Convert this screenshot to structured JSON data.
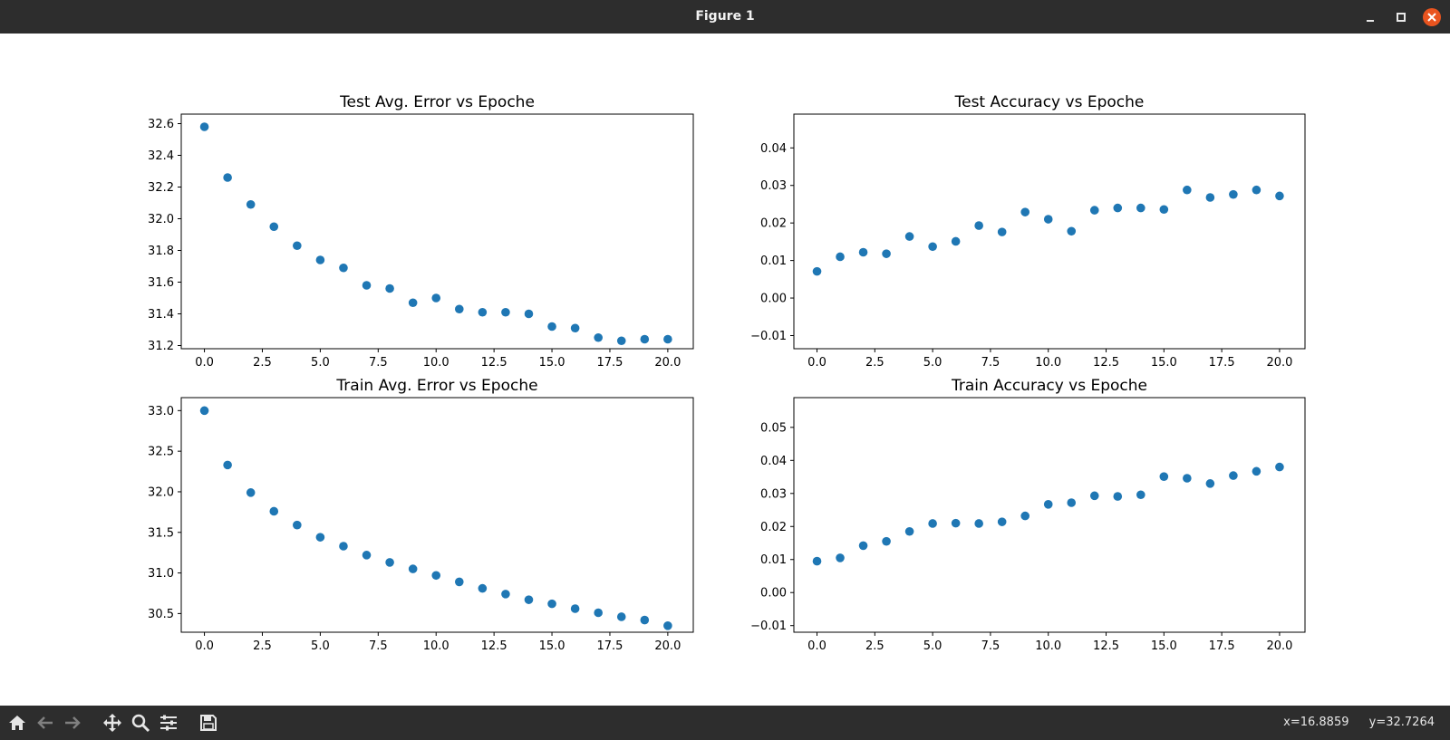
{
  "window": {
    "title": "Figure 1",
    "minimize_icon": "minimize-icon",
    "maximize_icon": "maximize-icon",
    "close_icon": "close-icon",
    "close_color": "#e9541f"
  },
  "toolbar": {
    "icons": [
      "home-icon",
      "back-arrow-icon",
      "forward-arrow-icon",
      "pan-move-icon",
      "zoom-magnifier-icon",
      "configure-subplots-icon",
      "save-floppy-icon"
    ],
    "coord_x": "x=16.8859",
    "coord_y": "y=32.7264"
  },
  "chart_data": [
    {
      "type": "scatter",
      "title": "Test Avg. Error vs Epoche",
      "xlabel": "",
      "ylabel": "",
      "x": [
        0,
        1,
        2,
        3,
        4,
        5,
        6,
        7,
        8,
        9,
        10,
        11,
        12,
        13,
        14,
        15,
        16,
        17,
        18,
        19,
        20
      ],
      "y": [
        32.58,
        32.26,
        32.09,
        31.95,
        31.83,
        31.74,
        31.69,
        31.58,
        31.56,
        31.47,
        31.5,
        31.43,
        31.41,
        31.41,
        31.4,
        31.32,
        31.31,
        31.25,
        31.23,
        31.24,
        31.24
      ],
      "xlim": [
        -1,
        21.1
      ],
      "ylim": [
        31.18,
        32.66
      ],
      "xticks": [
        0,
        2.5,
        5,
        7.5,
        10,
        12.5,
        15,
        17.5,
        20
      ],
      "xtick_labels": [
        "0.0",
        "2.5",
        "5.0",
        "7.5",
        "10.0",
        "12.5",
        "15.0",
        "17.5",
        "20.0"
      ],
      "yticks": [
        31.2,
        31.4,
        31.6,
        31.8,
        32.0,
        32.2,
        32.4,
        32.6
      ],
      "ytick_labels": [
        "31.2",
        "31.4",
        "31.6",
        "31.8",
        "32.0",
        "32.2",
        "32.4",
        "32.6"
      ],
      "color": "#1f77b4",
      "grid": false
    },
    {
      "type": "scatter",
      "title": "Test Accuracy vs Epoche",
      "xlabel": "",
      "ylabel": "",
      "x": [
        0,
        1,
        2,
        3,
        4,
        5,
        6,
        7,
        8,
        9,
        10,
        11,
        12,
        13,
        14,
        15,
        16,
        17,
        18,
        19,
        20
      ],
      "y": [
        0.0071,
        0.011,
        0.0122,
        0.0118,
        0.0164,
        0.0137,
        0.0151,
        0.0193,
        0.0176,
        0.0229,
        0.021,
        0.0178,
        0.0234,
        0.024,
        0.024,
        0.0236,
        0.0288,
        0.0268,
        0.0276,
        0.0288,
        0.0272
      ],
      "xlim": [
        -1,
        21.1
      ],
      "ylim": [
        -0.0135,
        0.049
      ],
      "xticks": [
        0,
        2.5,
        5,
        7.5,
        10,
        12.5,
        15,
        17.5,
        20
      ],
      "xtick_labels": [
        "0.0",
        "2.5",
        "5.0",
        "7.5",
        "10.0",
        "12.5",
        "15.0",
        "17.5",
        "20.0"
      ],
      "yticks": [
        -0.01,
        0.0,
        0.01,
        0.02,
        0.03,
        0.04
      ],
      "ytick_labels": [
        "−0.01",
        "0.00",
        "0.01",
        "0.02",
        "0.03",
        "0.04"
      ],
      "color": "#1f77b4",
      "grid": false
    },
    {
      "type": "scatter",
      "title": "Train Avg. Error vs Epoche",
      "xlabel": "",
      "ylabel": "",
      "x": [
        0,
        1,
        2,
        3,
        4,
        5,
        6,
        7,
        8,
        9,
        10,
        11,
        12,
        13,
        14,
        15,
        16,
        17,
        18,
        19,
        20
      ],
      "y": [
        33.0,
        32.33,
        31.99,
        31.76,
        31.59,
        31.44,
        31.33,
        31.22,
        31.13,
        31.05,
        30.97,
        30.89,
        30.81,
        30.74,
        30.67,
        30.62,
        30.56,
        30.51,
        30.46,
        30.42,
        30.35
      ],
      "xlim": [
        -1,
        21.1
      ],
      "ylim": [
        30.27,
        33.16
      ],
      "xticks": [
        0,
        2.5,
        5,
        7.5,
        10,
        12.5,
        15,
        17.5,
        20
      ],
      "xtick_labels": [
        "0.0",
        "2.5",
        "5.0",
        "7.5",
        "10.0",
        "12.5",
        "15.0",
        "17.5",
        "20.0"
      ],
      "yticks": [
        30.5,
        31.0,
        31.5,
        32.0,
        32.5,
        33.0
      ],
      "ytick_labels": [
        "30.5",
        "31.0",
        "31.5",
        "32.0",
        "32.5",
        "33.0"
      ],
      "color": "#1f77b4",
      "grid": false
    },
    {
      "type": "scatter",
      "title": "Train Accuracy vs Epoche",
      "xlabel": "",
      "ylabel": "",
      "x": [
        0,
        1,
        2,
        3,
        4,
        5,
        6,
        7,
        8,
        9,
        10,
        11,
        12,
        13,
        14,
        15,
        16,
        17,
        18,
        19,
        20
      ],
      "y": [
        0.0095,
        0.0105,
        0.0142,
        0.0155,
        0.0185,
        0.0209,
        0.021,
        0.0209,
        0.0214,
        0.0232,
        0.0267,
        0.0272,
        0.0293,
        0.0291,
        0.0296,
        0.0351,
        0.0346,
        0.033,
        0.0354,
        0.0367,
        0.038
      ],
      "xlim": [
        -1,
        21.1
      ],
      "ylim": [
        -0.012,
        0.059
      ],
      "xticks": [
        0,
        2.5,
        5,
        7.5,
        10,
        12.5,
        15,
        17.5,
        20
      ],
      "xtick_labels": [
        "0.0",
        "2.5",
        "5.0",
        "7.5",
        "10.0",
        "12.5",
        "15.0",
        "17.5",
        "20.0"
      ],
      "yticks": [
        -0.01,
        0.0,
        0.01,
        0.02,
        0.03,
        0.04,
        0.05
      ],
      "ytick_labels": [
        "−0.01",
        "0.00",
        "0.01",
        "0.02",
        "0.03",
        "0.04",
        "0.05"
      ],
      "color": "#1f77b4",
      "grid": false
    }
  ]
}
